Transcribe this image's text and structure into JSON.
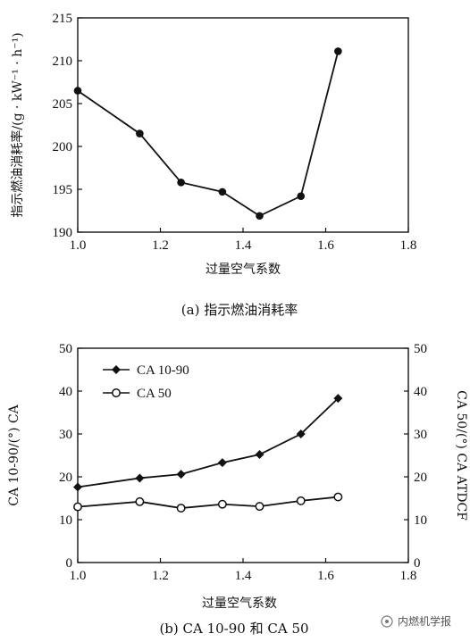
{
  "chart_data": [
    {
      "type": "line",
      "x": [
        1.0,
        1.15,
        1.25,
        1.35,
        1.44,
        1.54,
        1.63
      ],
      "series": [
        {
          "values": [
            206.5,
            201.5,
            195.8,
            194.7,
            191.9,
            194.2,
            211.1
          ],
          "marker": "filled-circle",
          "color": "#111111"
        }
      ],
      "xlabel": "过量空气系数",
      "ylabel": "指示燃油消耗率/(g · kW⁻¹ · h⁻¹)",
      "xlim": [
        1.0,
        1.8
      ],
      "ylim": [
        190,
        215
      ],
      "xticks": [
        "1.0",
        "1.2",
        "1.4",
        "1.6",
        "1.8"
      ],
      "yticks": [
        "190",
        "195",
        "200",
        "205",
        "210",
        "215"
      ],
      "caption": "(a) 指示燃油消耗率",
      "grid": false
    },
    {
      "type": "line",
      "x": [
        1.0,
        1.15,
        1.25,
        1.35,
        1.44,
        1.54,
        1.63
      ],
      "series": [
        {
          "name": "CA 10-90",
          "values": [
            17.6,
            19.7,
            20.6,
            23.3,
            25.2,
            30.0,
            38.3
          ],
          "marker": "filled-diamond",
          "color": "#111111"
        },
        {
          "name": "CA 50",
          "values": [
            13.0,
            14.2,
            12.7,
            13.6,
            13.1,
            14.4,
            15.3
          ],
          "marker": "open-circle",
          "color": "#111111"
        }
      ],
      "xlabel": "过量空气系数",
      "ylabel": "CA 10-90/(°) CA",
      "ylabel_right": "CA 50/(°) CA ATDCF",
      "xlim": [
        1.0,
        1.8
      ],
      "ylim": [
        0,
        50
      ],
      "xticks": [
        "1.0",
        "1.2",
        "1.4",
        "1.6",
        "1.8"
      ],
      "yticks": [
        "0",
        "10",
        "20",
        "30",
        "40",
        "50"
      ],
      "legend": "top-left",
      "caption": "(b) CA 10-90 和 CA 50",
      "grid": false
    }
  ],
  "watermark": "内燃机学报"
}
